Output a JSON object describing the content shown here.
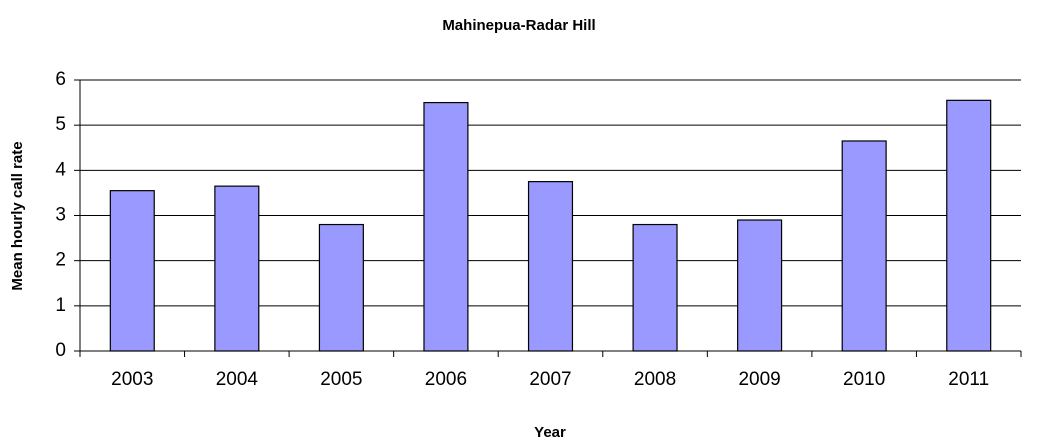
{
  "chart_data": {
    "type": "bar",
    "title": "Mahinepua-Radar Hill",
    "x_label": "Year",
    "y_label": "Mean hourly call rate",
    "categories": [
      "2003",
      "2004",
      "2005",
      "2006",
      "2007",
      "2008",
      "2009",
      "2010",
      "2011"
    ],
    "values": [
      3.55,
      3.65,
      2.8,
      5.5,
      3.75,
      2.8,
      2.9,
      4.65,
      5.55
    ],
    "color": "#9999ff",
    "ylim": [
      0,
      6
    ],
    "yticks": [
      0,
      1,
      2,
      3,
      4,
      5,
      6
    ],
    "grid": true
  }
}
